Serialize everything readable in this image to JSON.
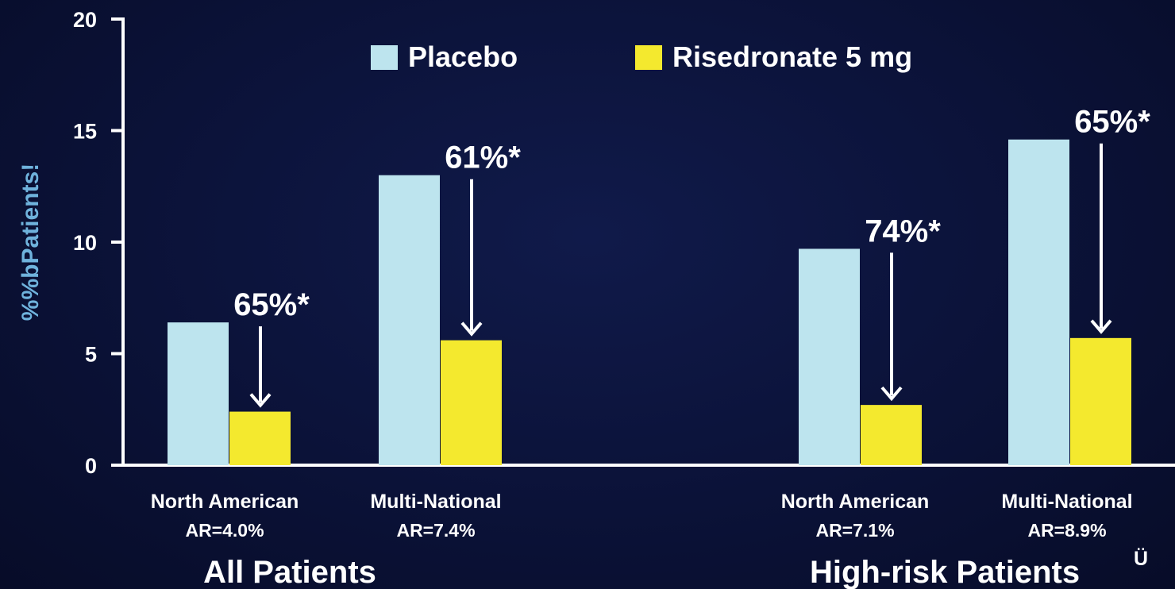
{
  "chart_data": {
    "type": "bar",
    "ylabel": "%%bPatients!",
    "ylim": [
      0,
      20
    ],
    "yticks": [
      "0",
      "5",
      "10",
      "15",
      "20"
    ],
    "categories": [
      {
        "name": "North American",
        "ar": "AR=4.0%"
      },
      {
        "name": "Multi-National",
        "ar": "AR=7.4%"
      },
      {
        "name": "North American",
        "ar": "AR=7.1%"
      },
      {
        "name": "Multi-National",
        "ar": "AR=8.9%"
      }
    ],
    "groups": [
      {
        "label": "All Patients",
        "superscript": ""
      },
      {
        "label": "High-risk Patients",
        "superscript": "Ü"
      }
    ],
    "series": [
      {
        "name": "Placebo",
        "color": "#bde4ee",
        "values": [
          6.4,
          13.0,
          9.7,
          14.6
        ]
      },
      {
        "name": "Risedronate 5 mg",
        "color": "#f4e92e",
        "values": [
          2.4,
          5.6,
          2.7,
          5.7
        ]
      }
    ],
    "annotations": [
      "65%*",
      "61%*",
      "74%*",
      "65%*"
    ],
    "legend_position": "top"
  }
}
